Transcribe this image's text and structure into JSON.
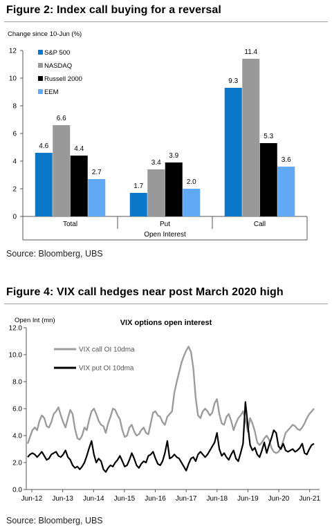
{
  "figure2": {
    "title": "Figure 2: Index call buying for a reversal",
    "source": "Source: Bloomberg, UBS"
  },
  "figure4": {
    "title": "Figure 4: VIX call hedges near post March 2020 high",
    "source": "Source: Bloomberg, UBS"
  },
  "colors": {
    "sp500": "#0a77c9",
    "nasdaq": "#999999",
    "russell": "#000000",
    "eem": "#62a9f5",
    "vix_call": "#9c9c9c",
    "vix_put": "#000000"
  },
  "chart_data": [
    {
      "type": "bar",
      "ylabel": "Change since 10-Jun  (%)",
      "xlabel": "Open Interest",
      "categories": [
        "Total",
        "Put",
        "Call"
      ],
      "ylim": [
        0,
        12
      ],
      "yticks": [
        "0",
        "2",
        "4",
        "6",
        "8",
        "10",
        "12"
      ],
      "series": [
        {
          "name": "S&P 500",
          "values": [
            4.6,
            1.7,
            9.3
          ],
          "labels": [
            "4.6",
            "1.7",
            "9.3"
          ]
        },
        {
          "name": "NASDAQ",
          "values": [
            6.6,
            3.4,
            11.4
          ],
          "labels": [
            "6.6",
            "3.4",
            "11.4"
          ]
        },
        {
          "name": "Russell 2000",
          "values": [
            4.4,
            3.9,
            5.3
          ],
          "labels": [
            "4.4",
            "3.9",
            "5.3"
          ]
        },
        {
          "name": "EEM",
          "values": [
            2.7,
            2.0,
            3.6
          ],
          "labels": [
            "2.7",
            "2.0",
            "3.6"
          ]
        }
      ],
      "legend": "top-left",
      "grid": false
    },
    {
      "type": "line",
      "title": "VIX options open interest",
      "ylabel": "Open Int (mn)",
      "ylim": [
        0,
        12
      ],
      "yticks": [
        "0.0",
        "2.0",
        "4.0",
        "6.0",
        "8.0",
        "10.0",
        "12.0"
      ],
      "xticks": [
        "Jun-12",
        "Jun-13",
        "Jun-14",
        "Jun-15",
        "Jun-16",
        "Jun-17",
        "Jun-18",
        "Jun-19",
        "Jun-20",
        "Jun-21"
      ],
      "x_start": "2012-06",
      "x_end": "2021-12",
      "series": [
        {
          "name": "VIX call OI 10dma",
          "values": [
            3.4,
            3.9,
            4.4,
            4.6,
            4.4,
            5.1,
            5.5,
            5.3,
            4.7,
            4.6,
            5.0,
            5.6,
            5.8,
            6.1,
            5.5,
            5.0,
            4.6,
            5.3,
            5.9,
            5.6,
            4.5,
            3.8,
            3.7,
            4.0,
            4.6,
            4.4,
            5.2,
            5.8,
            6.0,
            5.6,
            5.1,
            4.8,
            4.7,
            4.2,
            4.9,
            5.4,
            6.0,
            5.9,
            5.5,
            5.2,
            4.4,
            3.9,
            4.0,
            4.6,
            4.8,
            4.3,
            4.0,
            4.1,
            4.4,
            4.6,
            4.2,
            4.1,
            4.9,
            5.7,
            5.8,
            5.5,
            5.4,
            5.0,
            4.8,
            5.4,
            5.6,
            5.8,
            7.2,
            8.0,
            8.7,
            9.4,
            9.9,
            10.3,
            10.6,
            10.2,
            9.0,
            6.8,
            5.5,
            5.3,
            5.8,
            6.0,
            5.8,
            5.5,
            5.7,
            6.4,
            6.7,
            5.6,
            4.9,
            4.8,
            5.4,
            5.6,
            5.1,
            4.4,
            4.9,
            5.3,
            5.5,
            5.8,
            5.2,
            4.3,
            5.3,
            4.9,
            4.3,
            3.5,
            3.3,
            3.5,
            3.8,
            4.0,
            3.7,
            3.1,
            2.8,
            2.7,
            2.8,
            3.1,
            3.6,
            4.2,
            4.4,
            4.6,
            4.8,
            4.7,
            4.5,
            4.4,
            4.6,
            4.9,
            5.3,
            5.6,
            5.8,
            6.0
          ]
        },
        {
          "name": "VIX put OI 10dma",
          "values": [
            2.4,
            2.6,
            2.7,
            2.6,
            2.4,
            2.6,
            2.8,
            2.5,
            2.2,
            2.3,
            2.6,
            2.7,
            2.8,
            2.5,
            2.4,
            2.6,
            2.9,
            2.4,
            2.2,
            1.8,
            1.6,
            1.7,
            1.5,
            1.7,
            2.0,
            2.5,
            3.1,
            3.6,
            2.6,
            2.0,
            2.3,
            2.1,
            1.5,
            1.3,
            1.6,
            1.8,
            1.7,
            2.0,
            2.2,
            2.5,
            2.1,
            1.7,
            1.8,
            2.2,
            2.7,
            2.3,
            1.8,
            1.6,
            1.9,
            2.1,
            2.0,
            2.5,
            2.6,
            2.8,
            2.3,
            1.9,
            1.8,
            2.1,
            2.7,
            3.6,
            2.3,
            2.4,
            2.6,
            2.4,
            2.3,
            2.0,
            1.7,
            1.4,
            1.9,
            2.3,
            2.4,
            2.1,
            2.6,
            2.8,
            2.6,
            2.4,
            2.6,
            2.9,
            3.2,
            3.5,
            4.2,
            3.0,
            2.5,
            2.7,
            2.4,
            2.2,
            2.6,
            2.9,
            2.3,
            2.1,
            2.7,
            3.4,
            6.5,
            4.8,
            3.3,
            2.9,
            3.1,
            2.6,
            2.4,
            2.9,
            3.5,
            2.7,
            3.3,
            3.8,
            4.4,
            4.2,
            3.2,
            3.0,
            3.4,
            2.9,
            2.8,
            2.9,
            3.0,
            2.8,
            2.9,
            3.1,
            3.4,
            2.7,
            2.6,
            3.0,
            3.3,
            3.4
          ]
        }
      ],
      "legend": "top-left",
      "grid": false
    }
  ]
}
